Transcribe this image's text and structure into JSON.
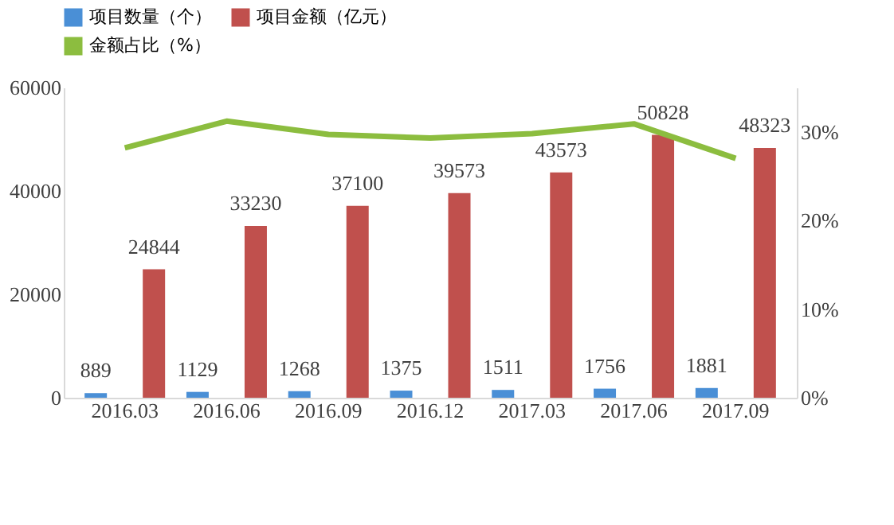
{
  "chart_data": {
    "type": "bar",
    "categories": [
      "2016.03",
      "2016.06",
      "2016.09",
      "2016.12",
      "2017.03",
      "2017.06",
      "2017.09"
    ],
    "series": [
      {
        "name": "项目数量（个）",
        "color": "#4a8fd6",
        "values": [
          889,
          1129,
          1268,
          1375,
          1511,
          1756,
          1881
        ],
        "value_labels": [
          "889",
          "1129",
          "1268",
          "1375",
          "1511",
          "1756",
          "1881"
        ]
      },
      {
        "name": "项目金额（亿元）",
        "color": "#c0504d",
        "values": [
          24844,
          33230,
          37100,
          39573,
          43573,
          50828,
          48323
        ],
        "value_labels": [
          "24844",
          "33230",
          "37100",
          "39573",
          "43573",
          "50828",
          "48323"
        ]
      },
      {
        "name": "金额占比（%）",
        "type": "line",
        "axis": "y2",
        "color": "#8cbd3f",
        "values": [
          28.2,
          31.2,
          29.7,
          29.3,
          29.8,
          30.9,
          27.0
        ]
      }
    ],
    "ylim": [
      0,
      60000
    ],
    "yticks": [
      0,
      20000,
      40000,
      60000
    ],
    "y2lim": [
      0,
      35
    ],
    "y2ticks": [
      {
        "value": 0,
        "label": "0%"
      },
      {
        "value": 10,
        "label": "10%"
      },
      {
        "value": 20,
        "label": "20%"
      },
      {
        "value": 30,
        "label": "30%"
      }
    ],
    "grid": false,
    "legend": "top",
    "marker": "none"
  }
}
